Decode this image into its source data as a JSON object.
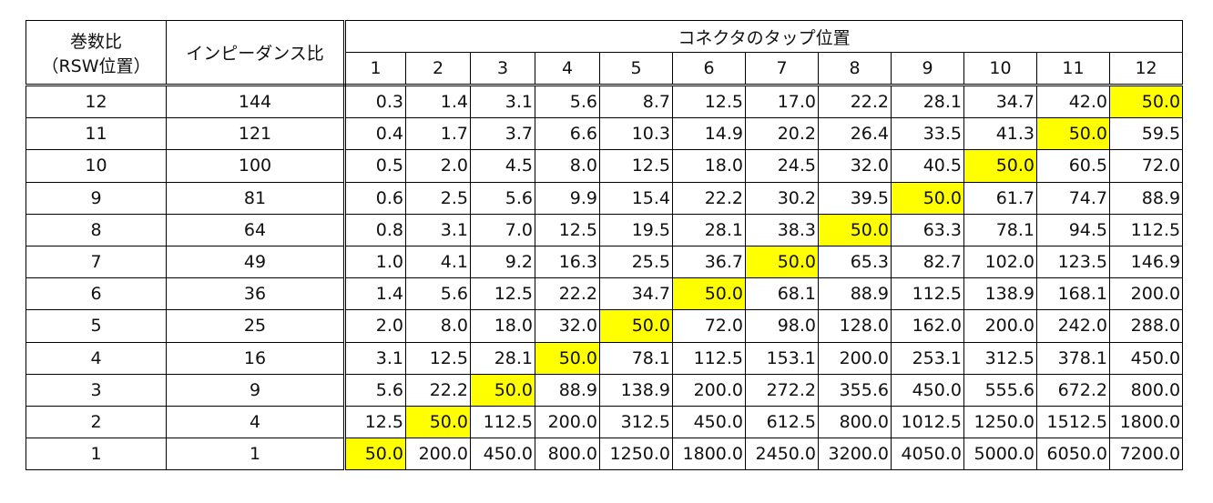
{
  "table": {
    "header": {
      "ratio_line1": "巻数比",
      "ratio_line2": "（RSW位置）",
      "impedance": "インピーダンス比",
      "taps_title": "コネクタのタップ位置",
      "taps": [
        "1",
        "2",
        "3",
        "4",
        "5",
        "6",
        "7",
        "8",
        "9",
        "10",
        "11",
        "12"
      ]
    },
    "highlight_color": "#ffff00",
    "rows": [
      {
        "ratio": "12",
        "impedance": "144",
        "values": [
          "0.3",
          "1.4",
          "3.1",
          "5.6",
          "8.7",
          "12.5",
          "17.0",
          "22.2",
          "28.1",
          "34.7",
          "42.0",
          "50.0"
        ]
      },
      {
        "ratio": "11",
        "impedance": "121",
        "values": [
          "0.4",
          "1.7",
          "3.7",
          "6.6",
          "10.3",
          "14.9",
          "20.2",
          "26.4",
          "33.5",
          "41.3",
          "50.0",
          "59.5"
        ]
      },
      {
        "ratio": "10",
        "impedance": "100",
        "values": [
          "0.5",
          "2.0",
          "4.5",
          "8.0",
          "12.5",
          "18.0",
          "24.5",
          "32.0",
          "40.5",
          "50.0",
          "60.5",
          "72.0"
        ]
      },
      {
        "ratio": "9",
        "impedance": "81",
        "values": [
          "0.6",
          "2.5",
          "5.6",
          "9.9",
          "15.4",
          "22.2",
          "30.2",
          "39.5",
          "50.0",
          "61.7",
          "74.7",
          "88.9"
        ]
      },
      {
        "ratio": "8",
        "impedance": "64",
        "values": [
          "0.8",
          "3.1",
          "7.0",
          "12.5",
          "19.5",
          "28.1",
          "38.3",
          "50.0",
          "63.3",
          "78.1",
          "94.5",
          "112.5"
        ]
      },
      {
        "ratio": "7",
        "impedance": "49",
        "values": [
          "1.0",
          "4.1",
          "9.2",
          "16.3",
          "25.5",
          "36.7",
          "50.0",
          "65.3",
          "82.7",
          "102.0",
          "123.5",
          "146.9"
        ]
      },
      {
        "ratio": "6",
        "impedance": "36",
        "values": [
          "1.4",
          "5.6",
          "12.5",
          "22.2",
          "34.7",
          "50.0",
          "68.1",
          "88.9",
          "112.5",
          "138.9",
          "168.1",
          "200.0"
        ]
      },
      {
        "ratio": "5",
        "impedance": "25",
        "values": [
          "2.0",
          "8.0",
          "18.0",
          "32.0",
          "50.0",
          "72.0",
          "98.0",
          "128.0",
          "162.0",
          "200.0",
          "242.0",
          "288.0"
        ]
      },
      {
        "ratio": "4",
        "impedance": "16",
        "values": [
          "3.1",
          "12.5",
          "28.1",
          "50.0",
          "78.1",
          "112.5",
          "153.1",
          "200.0",
          "253.1",
          "312.5",
          "378.1",
          "450.0"
        ]
      },
      {
        "ratio": "3",
        "impedance": "9",
        "values": [
          "5.6",
          "22.2",
          "50.0",
          "88.9",
          "138.9",
          "200.0",
          "272.2",
          "355.6",
          "450.0",
          "555.6",
          "672.2",
          "800.0"
        ]
      },
      {
        "ratio": "2",
        "impedance": "4",
        "values": [
          "12.5",
          "50.0",
          "112.5",
          "200.0",
          "312.5",
          "450.0",
          "612.5",
          "800.0",
          "1012.5",
          "1250.0",
          "1512.5",
          "1800.0"
        ]
      },
      {
        "ratio": "1",
        "impedance": "1",
        "values": [
          "50.0",
          "200.0",
          "450.0",
          "800.0",
          "1250.0",
          "1800.0",
          "2450.0",
          "3200.0",
          "4050.0",
          "5000.0",
          "6050.0",
          "7200.0"
        ]
      }
    ]
  }
}
